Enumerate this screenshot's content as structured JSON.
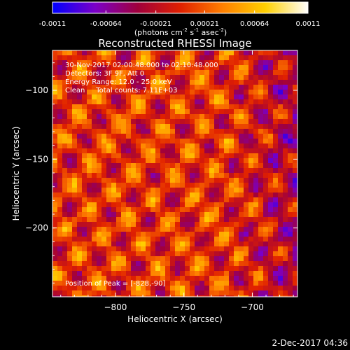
{
  "colorbar": {
    "tick_labels": [
      "-0.0011",
      "-0.00064",
      "-0.00021",
      "0.00021",
      "0.00064",
      "0.0011"
    ],
    "tick_values": [
      -0.0011,
      -0.00064,
      -0.00021,
      0.00021,
      0.00064,
      0.0011
    ],
    "range": [
      -0.0011,
      0.0011
    ],
    "units_prefix": "(photons cm",
    "units_exp1": "-2",
    "units_mid": " s",
    "units_exp2": "-1",
    "units_mid2": " asec",
    "units_exp3": "-2",
    "units_suffix": ")",
    "colors": [
      "#0000ff",
      "#7b00c8",
      "#a0003c",
      "#e02000",
      "#ff8000",
      "#ffd000",
      "#ffffff"
    ]
  },
  "plot": {
    "title": "Reconstructed RHESSI Image",
    "xlabel": "Heliocentric X (arcsec)",
    "ylabel": "Heliocentric Y (arcsec)",
    "x_ticks": [
      {
        "v": -800,
        "label": "−800"
      },
      {
        "v": -750,
        "label": "−750"
      },
      {
        "v": -700,
        "label": "−700"
      }
    ],
    "y_ticks": [
      {
        "v": -100,
        "label": "−100"
      },
      {
        "v": -150,
        "label": "−150"
      },
      {
        "v": -200,
        "label": "−200"
      }
    ],
    "xlim": [
      -846,
      -667
    ],
    "ylim": [
      -250,
      -71
    ],
    "annotations": [
      "30-Nov-2017 02:00:48.000 to 02:10:48.000",
      "Detectors: 3F 9F, Att 0",
      "Energy Range: 12.0 - 25.0 keV",
      "Clean     Total counts: 7.11E+03"
    ],
    "peak_label": "Position of Peak = [-828,-90]"
  },
  "timestamp": "2-Dec-2017 04:36"
}
